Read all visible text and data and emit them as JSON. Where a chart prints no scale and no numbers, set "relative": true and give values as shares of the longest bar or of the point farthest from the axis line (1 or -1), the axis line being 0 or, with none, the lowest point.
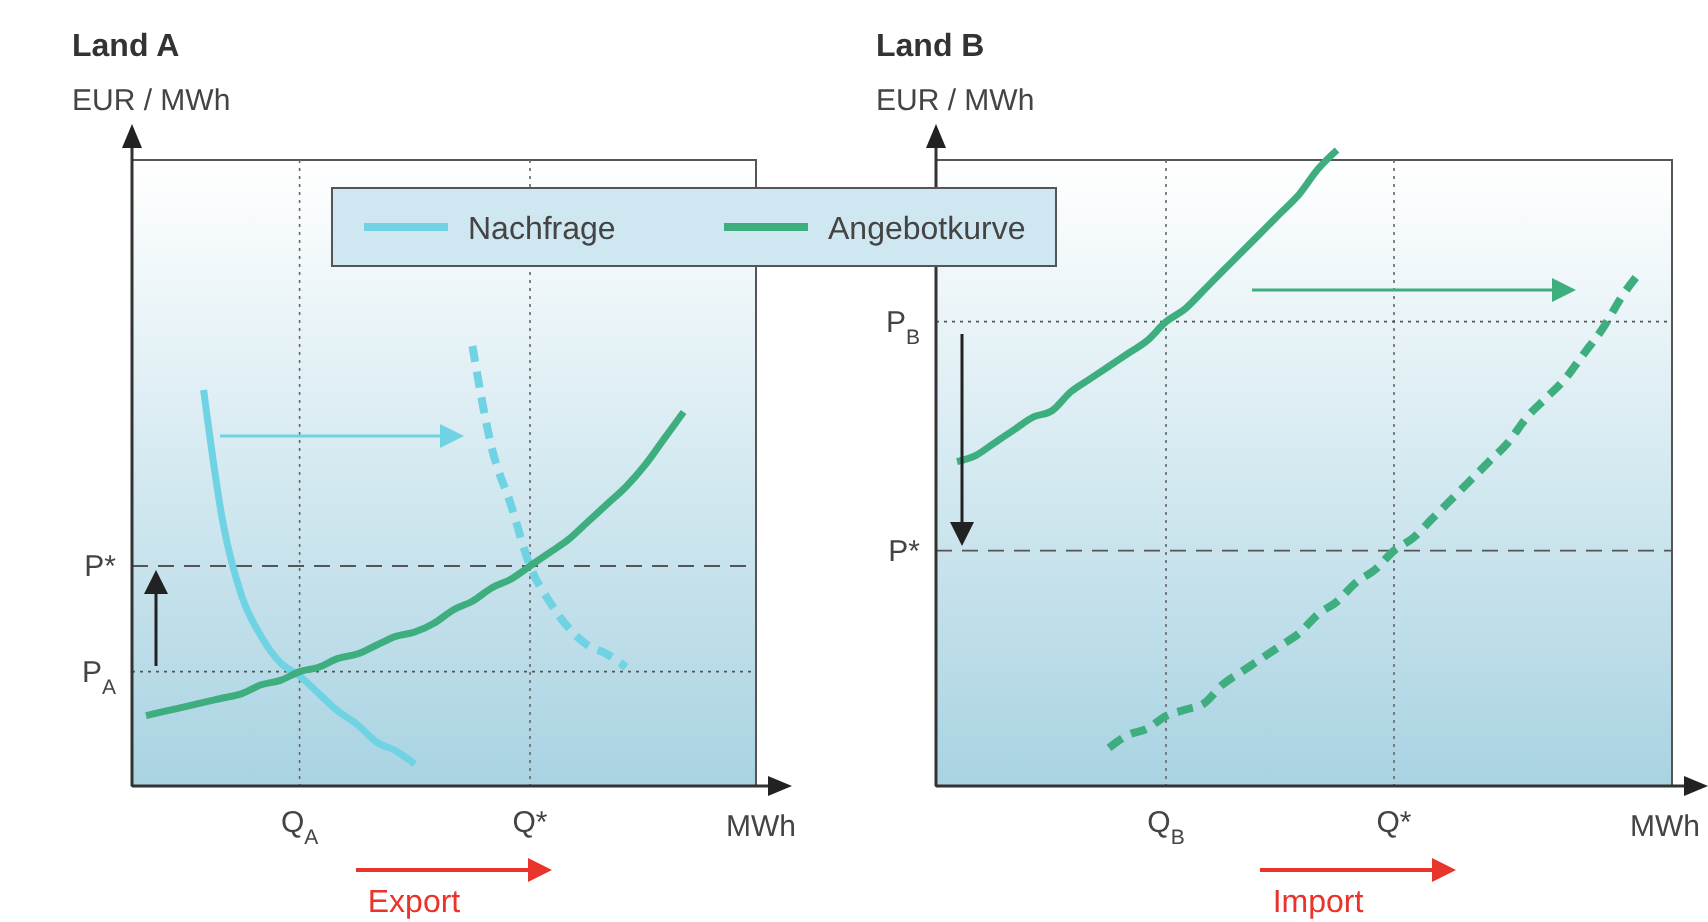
{
  "chart_data": [
    {
      "type": "line",
      "title": "Land A",
      "ylabel": "EUR / MWh",
      "xlabel": "MWh",
      "relative": true,
      "legend": "top",
      "grid": "x",
      "categories": [
        null,
        null,
        null,
        null,
        null,
        null,
        null,
        null,
        "Q$_{A}$",
        null,
        null,
        null,
        null,
        null,
        null,
        null,
        null,
        null,
        null,
        null,
        "Q*",
        null,
        null,
        null,
        null,
        null,
        null,
        null,
        null,
        null,
        null
      ],
      "series": [
        {
          "name": "Nachfrage",
          "color": "#6fd3e3",
          "line_style": "solid",
          "values": [
            null,
            null,
            null,
            0.9,
            0.6,
            0.43,
            0.34,
            0.28,
            0.25,
            0.21,
            0.17,
            0.14,
            0.1,
            0.08,
            0.05,
            null,
            null,
            null,
            null,
            null,
            null,
            null,
            null,
            null,
            null,
            null,
            null,
            null,
            null,
            null,
            null
          ]
        },
        {
          "color": "#6fd3e3",
          "line_style": "dashed",
          "values": [
            null,
            null,
            null,
            null,
            null,
            null,
            null,
            null,
            null,
            null,
            null,
            null,
            null,
            null,
            null,
            null,
            null,
            1.0,
            0.77,
            0.64,
            0.5,
            0.42,
            0.36,
            0.32,
            0.3,
            0.27,
            null,
            null,
            null,
            null,
            null
          ]
        },
        {
          "name": "Angebotkurve",
          "color": "#3fae7f",
          "line_style": "solid",
          "values": [
            0.16,
            0.17,
            0.18,
            0.19,
            0.2,
            0.21,
            0.23,
            0.24,
            0.26,
            0.27,
            0.29,
            0.3,
            0.32,
            0.34,
            0.35,
            0.37,
            0.4,
            0.42,
            0.45,
            0.47,
            0.5,
            0.53,
            0.56,
            0.6,
            0.64,
            0.68,
            0.73,
            0.79,
            0.85,
            null,
            null
          ]
        }
      ],
      "ref_lines": [
        {
          "axis": "y",
          "value": 0.5,
          "label": "P*",
          "line_style": "dashed"
        },
        {
          "axis": "y",
          "value": 0.26,
          "label": "P$_{A}$",
          "line_style": "dotted"
        }
      ],
      "annotations": [
        "Export"
      ]
    },
    {
      "type": "line",
      "title": "Land B",
      "ylabel": "EUR / MWh",
      "xlabel": "MWh",
      "relative": true,
      "grid": "x",
      "categories": [
        null,
        null,
        null,
        null,
        null,
        null,
        null,
        null,
        null,
        null,
        null,
        "Q$_{B}$",
        null,
        null,
        null,
        null,
        null,
        null,
        null,
        null,
        null,
        null,
        null,
        "Q*",
        null,
        null,
        null,
        null,
        null,
        null,
        null,
        null,
        null,
        null,
        null,
        null,
        null
      ],
      "series": [
        {
          "color": "#3fae7f",
          "line_style": "solid",
          "values": [
            0.51,
            0.52,
            0.54,
            0.56,
            0.58,
            0.59,
            0.62,
            0.64,
            0.66,
            0.68,
            0.7,
            0.73,
            0.75,
            0.78,
            0.81,
            0.84,
            0.87,
            0.9,
            0.93,
            0.97,
            1.0,
            null,
            null,
            null,
            null,
            null,
            null,
            null,
            null,
            null,
            null,
            null,
            null,
            null,
            null,
            null,
            null
          ]
        },
        {
          "color": "#3fae7f",
          "line_style": "dashed",
          "values": [
            null,
            null,
            null,
            null,
            null,
            null,
            null,
            null,
            0.06,
            0.08,
            0.09,
            0.11,
            0.12,
            0.13,
            0.16,
            0.18,
            0.2,
            0.22,
            0.24,
            0.27,
            0.29,
            0.32,
            0.34,
            0.37,
            0.39,
            0.42,
            0.45,
            0.48,
            0.51,
            0.54,
            0.58,
            0.61,
            0.64,
            0.68,
            0.72,
            0.77,
            0.81
          ]
        }
      ],
      "ref_lines": [
        {
          "axis": "y",
          "value": 0.37,
          "label": "P*",
          "line_style": "dashed"
        },
        {
          "axis": "y",
          "value": 0.73,
          "label": "P$_{B}$",
          "line_style": "dotted"
        }
      ],
      "annotations": [
        "Import"
      ]
    }
  ]
}
